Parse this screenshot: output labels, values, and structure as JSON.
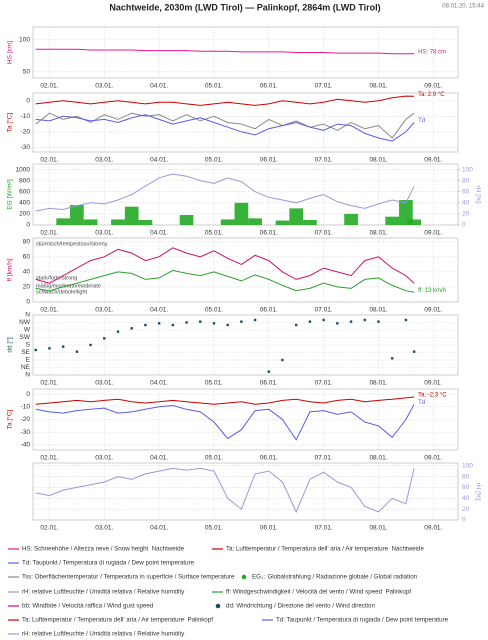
{
  "header": {
    "title": "Nachtweide, 2030m (LWD Tirol) — Palinkopf, 2864m (LWD Tirol)",
    "timestamp": "08.01.20, 15:44"
  },
  "chart_data": [
    {
      "type": "line",
      "ylabel": "HS [cm]",
      "ylabel_color": "#e8168c",
      "xlim": [
        0.7,
        8.45
      ],
      "xticks": [
        {
          "value": 1,
          "label": "02.01."
        },
        {
          "value": 2,
          "label": "03.01."
        },
        {
          "value": 3,
          "label": "04.01."
        },
        {
          "value": 4,
          "label": "05.01."
        },
        {
          "value": 5,
          "label": "06.01."
        },
        {
          "value": 6,
          "label": "07.01."
        },
        {
          "value": 7,
          "label": "08.01."
        },
        {
          "value": 8,
          "label": "09.01."
        }
      ],
      "ylim": [
        40,
        120
      ],
      "yticks": [
        50,
        100
      ],
      "x": [
        0.75,
        1,
        1.25,
        1.5,
        1.75,
        2,
        2.25,
        2.5,
        2.75,
        3,
        3.25,
        3.5,
        3.75,
        4,
        4.25,
        4.5,
        4.75,
        5,
        5.25,
        5.5,
        5.75,
        6,
        6.25,
        6.5,
        6.75,
        7,
        7.25,
        7.5,
        7.65
      ],
      "series": [
        {
          "name": "HS",
          "color": "#e8168c",
          "annotation": "HS: 78 cm",
          "values": [
            85,
            85,
            85,
            85,
            84,
            84,
            84,
            84,
            83,
            83,
            83,
            83,
            82,
            82,
            82,
            81,
            81,
            81,
            81,
            80,
            80,
            80,
            79,
            79,
            79,
            79,
            78,
            78,
            78
          ]
        }
      ]
    },
    {
      "type": "line",
      "ylabel": "Ta [°C]",
      "ylabel_color": "#cc0000",
      "xlim": [
        0.7,
        8.45
      ],
      "xticks": [
        {
          "value": 1,
          "label": "02.01."
        },
        {
          "value": 2,
          "label": "03.01."
        },
        {
          "value": 3,
          "label": "04.01."
        },
        {
          "value": 4,
          "label": "05.01."
        },
        {
          "value": 5,
          "label": "06.01."
        },
        {
          "value": 6,
          "label": "07.01."
        },
        {
          "value": 7,
          "label": "08.01."
        },
        {
          "value": 8,
          "label": "09.01."
        }
      ],
      "ylim": [
        -33,
        5
      ],
      "yticks": [
        0,
        -10,
        -20,
        -30
      ],
      "x": [
        0.75,
        1,
        1.25,
        1.5,
        1.75,
        2,
        2.25,
        2.5,
        2.75,
        3,
        3.25,
        3.5,
        3.75,
        4,
        4.25,
        4.5,
        4.75,
        5,
        5.25,
        5.5,
        5.75,
        6,
        6.25,
        6.5,
        6.75,
        7,
        7.25,
        7.5,
        7.65
      ],
      "series": [
        {
          "name": "Tss",
          "color": "#8a8a8a",
          "values": [
            -15,
            -8,
            -12,
            -10,
            -14,
            -9,
            -12,
            -8,
            -10,
            -9,
            -13,
            -9,
            -13,
            -10,
            -14,
            -15,
            -18,
            -12,
            -16,
            -13,
            -17,
            -15,
            -19,
            -14,
            -18,
            -16,
            -24,
            -12,
            -8
          ]
        },
        {
          "name": "Td",
          "color": "#5b5be6",
          "annotation": "Td",
          "values": [
            -12,
            -13,
            -10,
            -11,
            -13,
            -12,
            -14,
            -11,
            -9,
            -12,
            -15,
            -13,
            -11,
            -14,
            -17,
            -20,
            -22,
            -18,
            -16,
            -14,
            -17,
            -19,
            -15,
            -16,
            -21,
            -24,
            -26,
            -20,
            -14
          ]
        },
        {
          "name": "Ta",
          "color": "#cc0000",
          "annotation": "Ta: 2,9 °C",
          "values": [
            -2,
            -1,
            0,
            -1,
            -2,
            -1,
            0,
            -1,
            -2,
            -1,
            -1,
            -2,
            -3,
            -2,
            -1,
            -2,
            -3,
            -2,
            0,
            -1,
            -2,
            -1,
            1,
            0,
            -1,
            0,
            2,
            3,
            2.9
          ]
        }
      ]
    },
    {
      "type": "combo",
      "ylabel": "EG [W/m²]",
      "ylabel_color": "#22aa22",
      "y2label": "rH [%]",
      "y2label_color": "#9999dd",
      "xlim": [
        0.7,
        8.45
      ],
      "xticks": [
        {
          "value": 1,
          "label": "02.01."
        },
        {
          "value": 2,
          "label": "03.01."
        },
        {
          "value": 3,
          "label": "04.01."
        },
        {
          "value": 4,
          "label": "05.01."
        },
        {
          "value": 5,
          "label": "06.01."
        },
        {
          "value": 6,
          "label": "07.01."
        },
        {
          "value": 7,
          "label": "08.01."
        },
        {
          "value": 8,
          "label": "09.01."
        }
      ],
      "ylim": [
        0,
        1100
      ],
      "yticks": [
        0,
        200,
        400,
        600,
        800,
        1000
      ],
      "y2lim": [
        0,
        110
      ],
      "y2ticks": [
        0,
        20,
        40,
        60,
        80,
        100
      ],
      "x": [
        0.75,
        1,
        1.25,
        1.5,
        1.75,
        2,
        2.25,
        2.5,
        2.75,
        3,
        3.25,
        3.5,
        3.75,
        4,
        4.25,
        4.5,
        4.75,
        5,
        5.25,
        5.5,
        5.75,
        6,
        6.25,
        6.5,
        6.75,
        7,
        7.25,
        7.5,
        7.65
      ],
      "series": [
        {
          "name": "EG",
          "type": "bar",
          "color": "#22aa22",
          "values": [
            0,
            0,
            120,
            360,
            100,
            0,
            100,
            330,
            90,
            0,
            0,
            180,
            0,
            0,
            100,
            400,
            120,
            0,
            80,
            300,
            90,
            0,
            0,
            200,
            0,
            0,
            150,
            450,
            100
          ]
        },
        {
          "name": "rH",
          "type": "line",
          "axis": "y2",
          "color": "#9999dd",
          "values": [
            25,
            30,
            28,
            35,
            40,
            38,
            45,
            55,
            70,
            85,
            92,
            88,
            80,
            75,
            85,
            78,
            60,
            50,
            45,
            40,
            48,
            55,
            42,
            35,
            30,
            38,
            45,
            40,
            70
          ]
        }
      ]
    },
    {
      "type": "line",
      "ylabel": "ff [km/h]",
      "ylabel_color": "#cc1166",
      "xlim": [
        0.7,
        8.45
      ],
      "xticks": [
        {
          "value": 1,
          "label": "02.01."
        },
        {
          "value": 2,
          "label": "03.01."
        },
        {
          "value": 3,
          "label": "04.01."
        },
        {
          "value": 4,
          "label": "05.01."
        },
        {
          "value": 5,
          "label": "06.01."
        },
        {
          "value": 6,
          "label": "07.01."
        },
        {
          "value": 7,
          "label": "08.01."
        },
        {
          "value": 8,
          "label": "09.01."
        }
      ],
      "ylim": [
        0,
        85
      ],
      "yticks": [
        0,
        20,
        40,
        60,
        80
      ],
      "annotations": [
        "stürmisch/tempestoso/stormy",
        "stark/forte/strong",
        "mäßig/moderato/moderate",
        "schwach/debole/light"
      ],
      "x": [
        0.75,
        1,
        1.25,
        1.5,
        1.75,
        2,
        2.25,
        2.5,
        2.75,
        3,
        3.25,
        3.5,
        3.75,
        4,
        4.25,
        4.5,
        4.75,
        5,
        5.25,
        5.5,
        5.75,
        6,
        6.25,
        6.5,
        6.75,
        7,
        7.25,
        7.5,
        7.65
      ],
      "series": [
        {
          "name": "bb",
          "color": "#cc1166",
          "values": [
            30,
            25,
            35,
            45,
            55,
            60,
            70,
            65,
            55,
            60,
            72,
            65,
            60,
            68,
            58,
            50,
            62,
            55,
            40,
            30,
            35,
            45,
            40,
            35,
            55,
            60,
            45,
            35,
            25
          ]
        },
        {
          "name": "ff",
          "color": "#2ca02c",
          "annotation": "ff: 13 km/h",
          "values": [
            18,
            15,
            20,
            25,
            30,
            35,
            40,
            38,
            30,
            32,
            42,
            38,
            35,
            40,
            34,
            28,
            36,
            30,
            22,
            15,
            18,
            25,
            20,
            18,
            30,
            32,
            22,
            15,
            13
          ]
        }
      ]
    },
    {
      "type": "scatter",
      "ylabel": "dd [°]",
      "ylabel_color": "#1d4e5c",
      "xlim": [
        0.7,
        8.45
      ],
      "xticks": [
        {
          "value": 1,
          "label": "02.01."
        },
        {
          "value": 2,
          "label": "03.01."
        },
        {
          "value": 3,
          "label": "04.01."
        },
        {
          "value": 4,
          "label": "05.01."
        },
        {
          "value": 5,
          "label": "06.01."
        },
        {
          "value": 6,
          "label": "07.01."
        },
        {
          "value": 7,
          "label": "08.01."
        },
        {
          "value": 8,
          "label": "09.01."
        }
      ],
      "ylim": [
        0,
        360
      ],
      "yticks": [
        {
          "value": 360,
          "label": "N"
        },
        {
          "value": 315,
          "label": "NW"
        },
        {
          "value": 270,
          "label": "W"
        },
        {
          "value": 225,
          "label": "SW"
        },
        {
          "value": 180,
          "label": "S"
        },
        {
          "value": 135,
          "label": "SE"
        },
        {
          "value": 90,
          "label": "E"
        },
        {
          "value": 45,
          "label": "NE"
        },
        {
          "value": 0,
          "label": "N"
        }
      ],
      "x": [
        0.75,
        1,
        1.25,
        1.5,
        1.75,
        2,
        2.25,
        2.5,
        2.75,
        3,
        3.25,
        3.5,
        3.75,
        4,
        4.25,
        4.5,
        4.75,
        5,
        5.25,
        5.5,
        5.75,
        6,
        6.25,
        6.5,
        6.75,
        7,
        7.25,
        7.5,
        7.65
      ],
      "series": [
        {
          "name": "dd",
          "color": "#1d4e5c",
          "values": [
            150,
            160,
            170,
            140,
            180,
            220,
            260,
            280,
            300,
            310,
            300,
            315,
            320,
            310,
            300,
            320,
            330,
            20,
            90,
            300,
            320,
            330,
            310,
            320,
            330,
            320,
            100,
            330,
            140
          ]
        }
      ]
    },
    {
      "type": "line",
      "ylabel": "Ta [°C]",
      "ylabel_color": "#cc0000",
      "xlim": [
        0.7,
        8.45
      ],
      "xticks": [
        {
          "value": 1,
          "label": "02.01."
        },
        {
          "value": 2,
          "label": "03.01."
        },
        {
          "value": 3,
          "label": "04.01."
        },
        {
          "value": 4,
          "label": "05.01."
        },
        {
          "value": 5,
          "label": "06.01."
        },
        {
          "value": 6,
          "label": "07.01."
        },
        {
          "value": 7,
          "label": "08.01."
        },
        {
          "value": 8,
          "label": "09.01."
        }
      ],
      "ylim": [
        -44,
        4
      ],
      "yticks": [
        0,
        -10,
        -20,
        -30,
        -40
      ],
      "x": [
        0.75,
        1,
        1.25,
        1.5,
        1.75,
        2,
        2.25,
        2.5,
        2.75,
        3,
        3.25,
        3.5,
        3.75,
        4,
        4.25,
        4.5,
        4.75,
        5,
        5.25,
        5.5,
        5.75,
        6,
        6.25,
        6.5,
        6.75,
        7,
        7.25,
        7.5,
        7.65
      ],
      "series": [
        {
          "name": "Td",
          "color": "#5b5be6",
          "annotation": "Td",
          "values": [
            -12,
            -14,
            -15,
            -13,
            -12,
            -11,
            -15,
            -14,
            -12,
            -10,
            -9,
            -12,
            -14,
            -22,
            -35,
            -28,
            -13,
            -12,
            -20,
            -36,
            -14,
            -13,
            -16,
            -14,
            -22,
            -25,
            -34,
            -20,
            -8
          ]
        },
        {
          "name": "Ta",
          "color": "#cc0000",
          "annotation": "Ta: -2,3 °C",
          "values": [
            -8,
            -7,
            -6,
            -5,
            -6,
            -5,
            -4,
            -6,
            -7,
            -6,
            -5,
            -6,
            -7,
            -8,
            -7,
            -6,
            -8,
            -7,
            -5,
            -4,
            -6,
            -7,
            -5,
            -4,
            -6,
            -5,
            -4,
            -3,
            -2.3
          ]
        }
      ]
    },
    {
      "type": "line",
      "y2label": "rH [%]",
      "y2label_color": "#9999dd",
      "xlim": [
        0.7,
        8.45
      ],
      "xticks": [
        {
          "value": 1,
          "label": "02.01."
        },
        {
          "value": 2,
          "label": "03.01."
        },
        {
          "value": 3,
          "label": "04.01."
        },
        {
          "value": 4,
          "label": "05.01."
        },
        {
          "value": 5,
          "label": "06.01."
        },
        {
          "value": 6,
          "label": "07.01."
        },
        {
          "value": 7,
          "label": "08.01."
        },
        {
          "value": 8,
          "label": "09.01."
        }
      ],
      "y2lim": [
        0,
        105
      ],
      "y2ticks": [
        0,
        20,
        40,
        60,
        80,
        100
      ],
      "x": [
        0.75,
        1,
        1.25,
        1.5,
        1.75,
        2,
        2.25,
        2.5,
        2.75,
        3,
        3.25,
        3.5,
        3.75,
        4,
        4.25,
        4.5,
        4.75,
        5,
        5.25,
        5.5,
        5.75,
        6,
        6.25,
        6.5,
        6.75,
        7,
        7.25,
        7.5,
        7.65
      ],
      "series": [
        {
          "name": "rH",
          "axis": "y2",
          "color": "#9999dd",
          "values": [
            50,
            45,
            55,
            60,
            65,
            70,
            80,
            75,
            85,
            90,
            95,
            92,
            95,
            90,
            40,
            20,
            85,
            90,
            70,
            15,
            75,
            88,
            70,
            60,
            25,
            15,
            40,
            30,
            95
          ]
        }
      ]
    }
  ],
  "legend": [
    {
      "label": "HS: Schneehöhe / Altezza neve / Snow height  Nachtweide",
      "color": "#e8168c",
      "marker": "line"
    },
    {
      "label": "Ta: Lufttemperatur / Temperatura dell' aria / Air temperature  Nachtweide",
      "color": "#cc0000",
      "marker": "line"
    },
    {
      "label": "Td: Taupunkt / Temperatura di rugiada / Dew point temperature",
      "color": "#5b5be6",
      "marker": "line"
    },
    {
      "label": "Tss: Oberflächentemperatur / Temperatura in superficie / Surface temperature",
      "color": "#8a8a8a",
      "marker": "line"
    },
    {
      "label": "EG↓: Globalstrahlung / Radiazione globale / Global radiation",
      "color": "#22aa22",
      "marker": "dot"
    },
    {
      "label": "rH: relative Luftfeuchte / Umidità relativa / Relative humidity",
      "color": "#9999dd",
      "marker": "line"
    },
    {
      "label": "ff: Windgeschwindigkeit / Velocità del vento / Wind speed  Palinkopf",
      "color": "#2ca02c",
      "marker": "line"
    },
    {
      "label": "bb: Windböe / Velocità raffica / Wind gust speed",
      "color": "#cc1166",
      "marker": "line"
    },
    {
      "label": "dd: Windrichtung / Direzione del vento / Wind direction",
      "color": "#1d4e5c",
      "marker": "dot"
    },
    {
      "label": "Ta: Lufttemperatur / Temperatura dell' aria / Air temperature  Palinkopf",
      "color": "#cc0000",
      "marker": "line"
    },
    {
      "label": "Td: Taupunkt / Temperatura di rugiada / Dew point temperature",
      "color": "#5b5be6",
      "marker": "line"
    },
    {
      "label": "rH: relative Luftfeuchte / Umidità relativa / Relative humidity",
      "color": "#9999dd",
      "marker": "line"
    }
  ]
}
